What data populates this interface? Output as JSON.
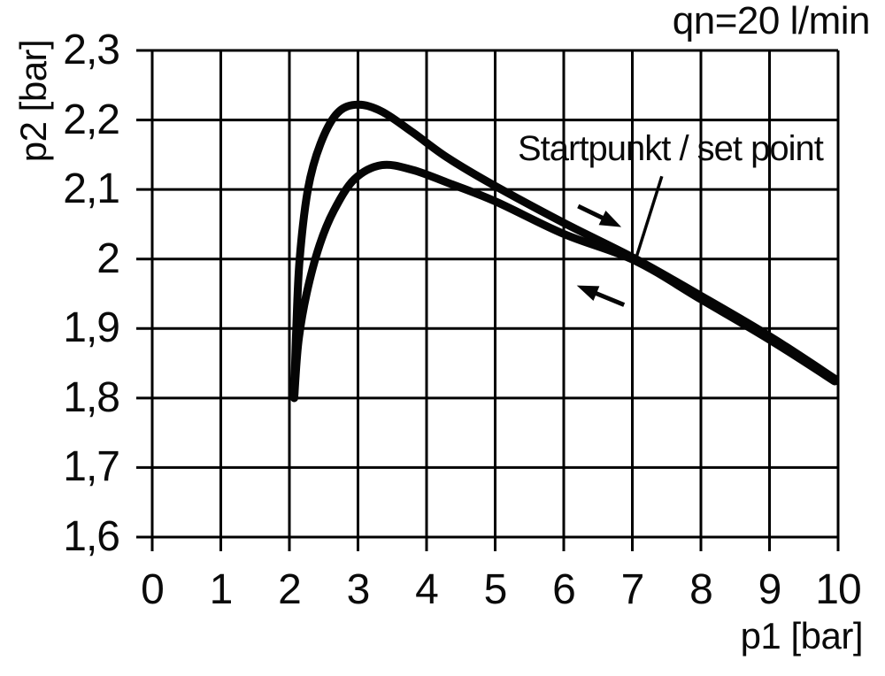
{
  "colors": {
    "ink": "#0a0a0a",
    "grid": "#000000",
    "curve": "#050505",
    "background": "#ffffff"
  },
  "chart_data": {
    "type": "line",
    "title": "",
    "flow_rate_label": "qn=20 l/min",
    "xlabel": "p1 [bar]",
    "ylabel": "p2 [bar]",
    "xlim": [
      0,
      10
    ],
    "ylim": [
      1.6,
      2.3
    ],
    "grid": true,
    "legend": "none",
    "x_ticks": [
      {
        "value": 0,
        "label": "0"
      },
      {
        "value": 1,
        "label": "1"
      },
      {
        "value": 2,
        "label": "2"
      },
      {
        "value": 3,
        "label": "3"
      },
      {
        "value": 4,
        "label": "4"
      },
      {
        "value": 5,
        "label": "5"
      },
      {
        "value": 6,
        "label": "6"
      },
      {
        "value": 7,
        "label": "7"
      },
      {
        "value": 8,
        "label": "8"
      },
      {
        "value": 9,
        "label": "9"
      },
      {
        "value": 10,
        "label": "10"
      }
    ],
    "y_ticks": [
      {
        "value": 2.3,
        "label": "2,3"
      },
      {
        "value": 2.2,
        "label": "2,2"
      },
      {
        "value": 2.1,
        "label": "2,1"
      },
      {
        "value": 2.0,
        "label": "2"
      },
      {
        "value": 1.9,
        "label": "1,9"
      },
      {
        "value": 1.8,
        "label": "1,8"
      },
      {
        "value": 1.7,
        "label": "1,7"
      },
      {
        "value": 1.6,
        "label": "1,6"
      }
    ],
    "series": [
      {
        "name": "upper hysteresis branch (p1 increasing, arrow right)",
        "points": [
          [
            2.07,
            1.8
          ],
          [
            2.1,
            1.9
          ],
          [
            2.15,
            2.0
          ],
          [
            2.27,
            2.1
          ],
          [
            2.45,
            2.165
          ],
          [
            2.7,
            2.21
          ],
          [
            3.0,
            2.222
          ],
          [
            3.35,
            2.212
          ],
          [
            3.8,
            2.182
          ],
          [
            4.3,
            2.146
          ],
          [
            5.0,
            2.105
          ],
          [
            6.0,
            2.052
          ],
          [
            7.03,
            2.001
          ],
          [
            8.0,
            1.947
          ],
          [
            9.0,
            1.889
          ],
          [
            9.95,
            1.828
          ]
        ]
      },
      {
        "name": "lower hysteresis branch (p1 decreasing, arrow left)",
        "points": [
          [
            2.07,
            1.8
          ],
          [
            2.13,
            1.88
          ],
          [
            2.25,
            1.95
          ],
          [
            2.44,
            2.02
          ],
          [
            2.65,
            2.07
          ],
          [
            2.95,
            2.115
          ],
          [
            3.35,
            2.135
          ],
          [
            3.8,
            2.128
          ],
          [
            4.3,
            2.11
          ],
          [
            5.0,
            2.083
          ],
          [
            6.0,
            2.036
          ],
          [
            7.03,
            1.998
          ],
          [
            8.0,
            1.942
          ],
          [
            9.0,
            1.884
          ],
          [
            9.95,
            1.824
          ]
        ]
      }
    ],
    "annotations": {
      "set_point": {
        "label": "Startpunkt / set point",
        "x": 7.0,
        "y": 2.0,
        "leader_from": [
          7.43,
          2.119
        ],
        "leader_to": [
          7.06,
          2.003
        ]
      },
      "arrow_increasing": {
        "direction": "right",
        "from": [
          6.21,
          2.076
        ],
        "to": [
          6.84,
          2.046
        ]
      },
      "arrow_decreasing": {
        "direction": "left",
        "from": [
          6.88,
          1.934
        ],
        "to": [
          6.19,
          1.962
        ]
      }
    }
  }
}
